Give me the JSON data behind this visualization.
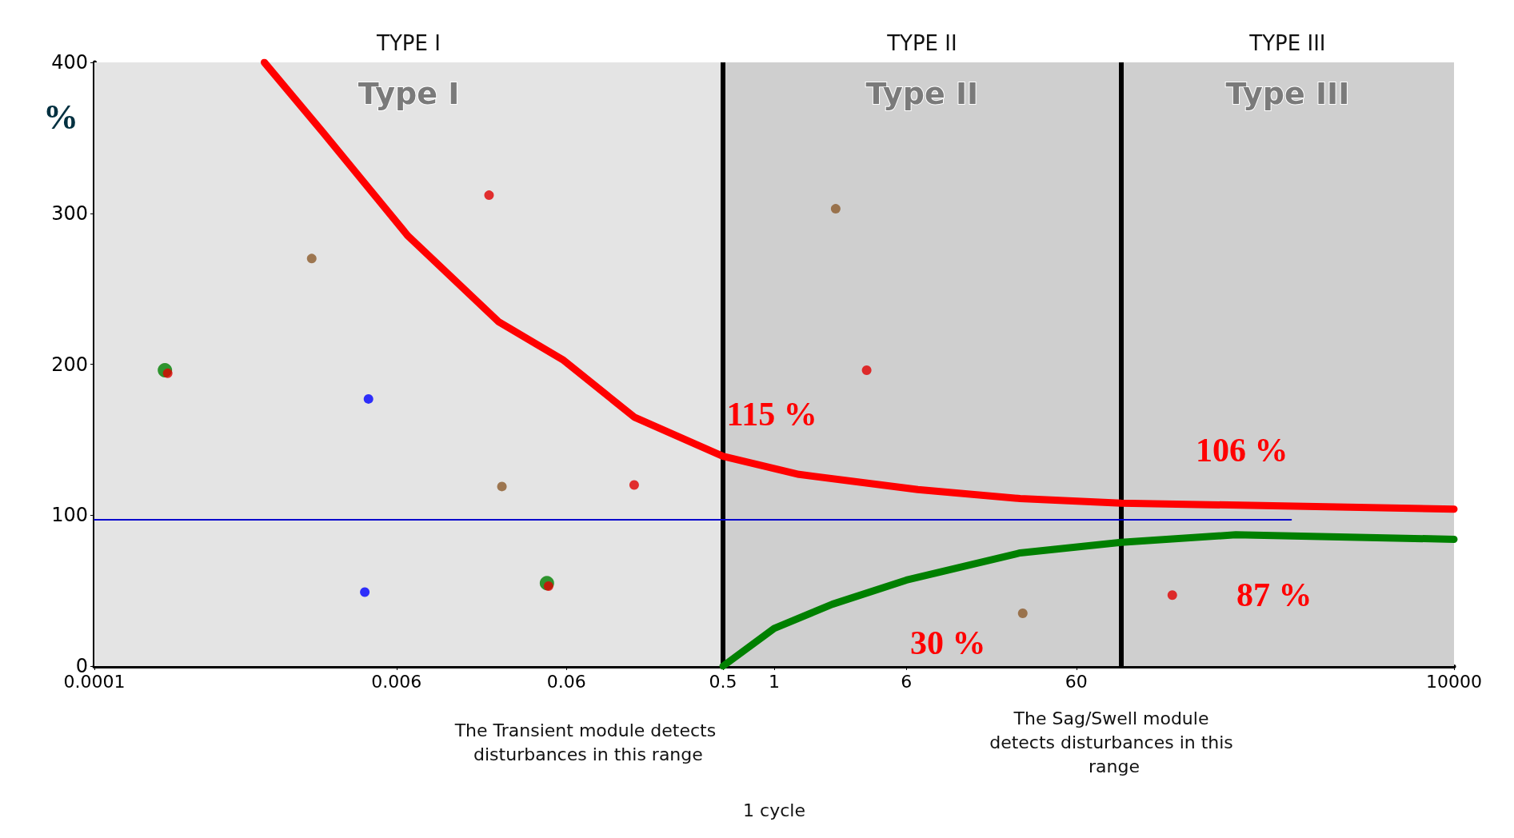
{
  "chart_data": {
    "type": "line",
    "ylabel": "%",
    "xlim": [
      0.0001,
      10000
    ],
    "xticks": [
      0.0001,
      0.006,
      0.06,
      0.5,
      1,
      6,
      60,
      10000
    ],
    "ylim": [
      0,
      400
    ],
    "yticks": [
      0,
      100,
      200,
      300,
      400
    ],
    "log": "x",
    "grid": false,
    "series": [
      {
        "color": "#ff0000",
        "x": [
          0.001,
          0.0022,
          0.007,
          0.024,
          0.057,
          0.15,
          0.5,
          1.4,
          7,
          28,
          110,
          10000
        ],
        "values": [
          400,
          354,
          285,
          228,
          203,
          165,
          139,
          127,
          117,
          111,
          108,
          104
        ]
      },
      {
        "color": "#008000",
        "x": [
          0.5,
          1,
          2.2,
          6,
          28,
          110,
          520,
          10000
        ],
        "values": [
          0,
          25,
          41,
          57,
          75,
          82,
          87,
          84
        ]
      },
      {
        "color": "#0000cc",
        "x": [
          0.0001,
          1100
        ],
        "values": [
          97,
          97
        ]
      },
      {
        "type": "scatter",
        "color": "#008000",
        "x": [
          0.00026,
          0.046
        ],
        "values": [
          196,
          55
        ]
      },
      {
        "type": "scatter",
        "color": "#e00000",
        "x": [
          0.00027,
          0.021,
          0.15,
          0.047,
          3.5,
          220
        ],
        "values": [
          194,
          312,
          120,
          53,
          196,
          47
        ]
      },
      {
        "type": "scatter",
        "color": "#8b5a2b",
        "x": [
          0.0019,
          0.025,
          2.3,
          29
        ],
        "values": [
          270,
          119,
          303,
          35
        ]
      },
      {
        "type": "scatter",
        "color": "#0000ff",
        "x": [
          0.0041,
          0.0039
        ],
        "values": [
          177,
          49
        ]
      }
    ],
    "bands": [
      {
        "axis": "x",
        "from": 0.0001,
        "to": 0.5,
        "label": "Type I",
        "color": "#e4e4e4"
      },
      {
        "axis": "x",
        "from": 0.5,
        "to": 110,
        "label": "Type II",
        "color": "#cfcfcf"
      },
      {
        "axis": "x",
        "from": 110,
        "to": 10000,
        "label": "Type III",
        "color": "#cfcfcf"
      }
    ],
    "ref_lines": [
      {
        "axis": "x",
        "value": 0.5,
        "color": "#000000"
      },
      {
        "axis": "x",
        "value": 110,
        "color": "#000000"
      }
    ],
    "annotations": [
      "TYPE I",
      "TYPE II",
      "TYPE III",
      "The Transient module detects disturbances in this range",
      "The Sag/Swell module detects disturbances in this range",
      "1 cycle",
      "115 %",
      "30 %",
      "106 %",
      "87 %"
    ]
  }
}
